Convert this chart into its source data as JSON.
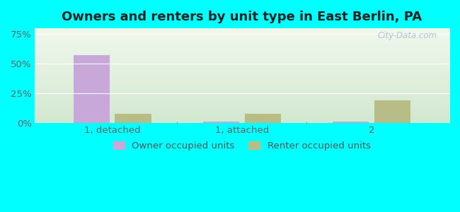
{
  "title": "Owners and renters by unit type in East Berlin, PA",
  "categories": [
    "1, detached",
    "1, attached",
    "2"
  ],
  "owner_values": [
    57.5,
    1.2,
    1.2
  ],
  "renter_values": [
    7.5,
    7.5,
    19.0
  ],
  "owner_color": "#c8a8d8",
  "renter_color": "#b8bd88",
  "yticks": [
    0,
    25,
    50,
    75
  ],
  "ytick_labels": [
    "0%",
    "25%",
    "50%",
    "75%"
  ],
  "ylim": [
    0,
    80
  ],
  "bar_width": 0.28,
  "bg_color_topleft": "#d8ecd0",
  "bg_color_topright": "#e8f0e0",
  "bg_color_bottom": "#f0f8e8",
  "legend_owner": "Owner occupied units",
  "legend_renter": "Renter occupied units",
  "watermark": "City-Data.com",
  "outer_bg": "#00ffff",
  "title_fontsize": 13,
  "tick_fontsize": 9.5,
  "legend_fontsize": 9.5
}
